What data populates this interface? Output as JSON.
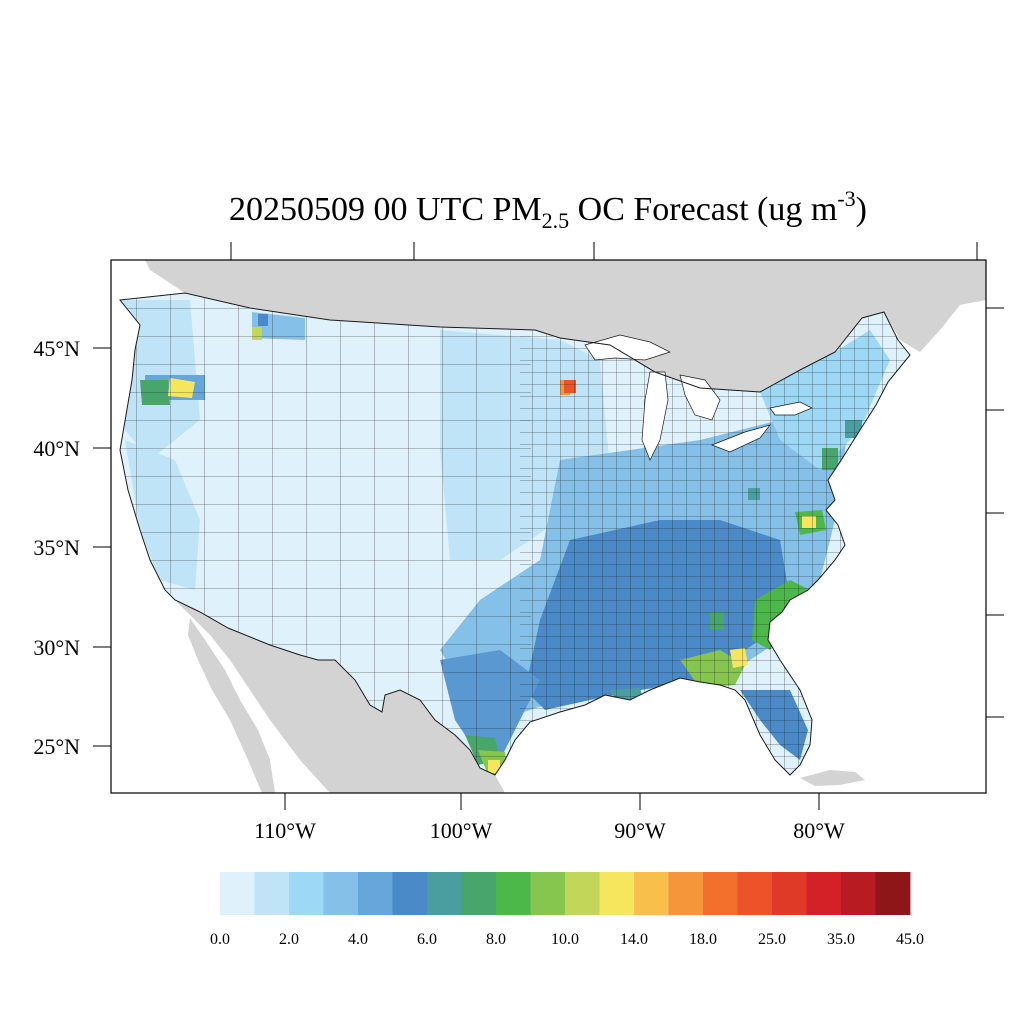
{
  "title": {
    "prefix": "20250509 00 UTC PM",
    "subscript": "2.5",
    "middle": " OC Forecast (ug m",
    "superscript": "-3",
    "suffix": ")"
  },
  "lat_labels": [
    "45°N",
    "40°N",
    "35°N",
    "30°N",
    "25°N"
  ],
  "lon_labels": [
    "110°W",
    "100°W",
    "90°W",
    "80°W"
  ],
  "colorbar": {
    "colors": [
      "#dff2fb",
      "#bfe4f7",
      "#9dd8f5",
      "#84c0e8",
      "#66a6da",
      "#4a8ac8",
      "#4a9ea0",
      "#48a56c",
      "#4cb84a",
      "#86c54e",
      "#c2d75a",
      "#f5e65e",
      "#f8bf4a",
      "#f6963a",
      "#f2702c",
      "#ea5428",
      "#df3a28",
      "#d42027",
      "#b81c22",
      "#8e1518"
    ],
    "labels": [
      "0.0",
      "2.0",
      "4.0",
      "6.0",
      "8.0",
      "10.0",
      "14.0",
      "18.0",
      "25.0",
      "35.0",
      "45.0"
    ]
  },
  "colors": {
    "land_other": "#d3d3d3",
    "ocean": "#ffffff",
    "low": "#dff2fb",
    "light": "#bfe4f7",
    "mid": "#84c0e8",
    "high": "#4a8ac8",
    "teal": "#4a9ea0",
    "green": "#4cb84a",
    "lime": "#86c54e",
    "yellow": "#f5e65e",
    "orange": "#f6963a",
    "red": "#ea5428"
  }
}
